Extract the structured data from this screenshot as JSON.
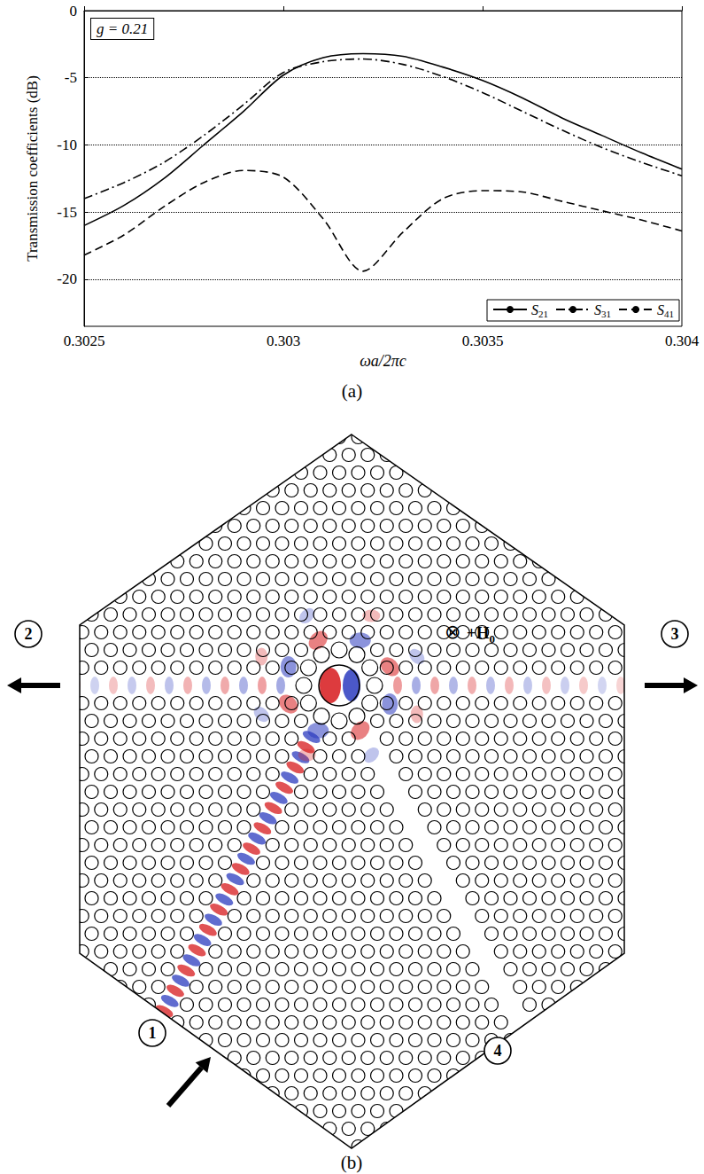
{
  "chart_data": {
    "type": "line",
    "panel_label": "(a)",
    "annotations": [
      "g = 0.21"
    ],
    "x_label": "ωa/2πc",
    "y_label": "Transmission coefficients (dB)",
    "x": [
      0.3025,
      0.3026,
      0.3027,
      0.3028,
      0.3029,
      0.303,
      0.3031,
      0.3032,
      0.3033,
      0.3034,
      0.3035,
      0.3036,
      0.3037,
      0.3038,
      0.3039,
      0.304
    ],
    "series": [
      {
        "name": "S21",
        "color": "#000000",
        "line_style": "solid",
        "values": [
          -16,
          -14.5,
          -12.5,
          -10,
          -7.5,
          -4.8,
          -3.5,
          -3.2,
          -3.4,
          -4.2,
          -5.2,
          -6.5,
          -8,
          -9.3,
          -10.6,
          -11.8
        ]
      },
      {
        "name": "S31",
        "color": "#000000",
        "line_style": "dashdot",
        "values": [
          -14,
          -12.8,
          -11.3,
          -9.3,
          -7,
          -4.6,
          -3.8,
          -3.6,
          -4,
          -4.9,
          -6.1,
          -7.5,
          -8.9,
          -10.2,
          -11.3,
          -12.3
        ]
      },
      {
        "name": "S41",
        "color": "#000000",
        "line_style": "dashed",
        "values": [
          -18.2,
          -16.7,
          -14.6,
          -12.8,
          -11.9,
          -12.4,
          -15.5,
          -19.4,
          -16.5,
          -14,
          -13.4,
          -13.5,
          -14.2,
          -14.9,
          -15.6,
          -16.4
        ]
      }
    ],
    "xlim": [
      0.3025,
      0.304
    ],
    "xticks": [
      0.3025,
      0.303,
      0.3035,
      0.304
    ],
    "ylim": [
      -23.5,
      0
    ],
    "yticks": [
      0,
      -5,
      -10,
      -15,
      -20
    ],
    "grid": true,
    "legend": "lower right"
  },
  "diagram": {
    "panel_label": "(b)",
    "ports": [
      "1",
      "2",
      "3",
      "4"
    ],
    "field": {
      "symbol": "⊗",
      "text": "+H",
      "subscript": "0"
    }
  }
}
